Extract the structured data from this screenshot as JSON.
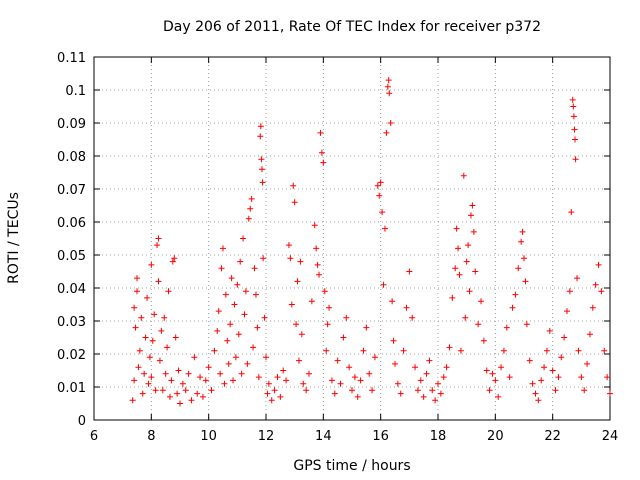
{
  "chart_data": {
    "type": "scatter",
    "title": "Day 206 of 2011, Rate Of TEC Index for receiver p372",
    "xlabel": "GPS time / hours",
    "ylabel": "ROTI / TECUs",
    "xlim": [
      6,
      24
    ],
    "ylim": [
      0,
      0.11
    ],
    "xticks": [
      6,
      8,
      10,
      12,
      14,
      16,
      18,
      20,
      22,
      24
    ],
    "xtick_labels": [
      "6",
      "8",
      "10",
      "12",
      "14",
      "16",
      "18",
      "20",
      "22",
      "24"
    ],
    "yticks": [
      0,
      0.01,
      0.02,
      0.03,
      0.04,
      0.05,
      0.06,
      0.07,
      0.08,
      0.09,
      0.1,
      0.11
    ],
    "ytick_labels": [
      "0",
      "0.01",
      "0.02",
      "0.03",
      "0.04",
      "0.05",
      "0.06",
      "0.07",
      "0.08",
      "0.09",
      "0.1",
      "0.11"
    ],
    "grid": true,
    "marker": "+",
    "color": "#ff0000",
    "series": [
      {
        "points": [
          [
            7.35,
            0.006
          ],
          [
            7.4,
            0.012
          ],
          [
            7.4,
            0.034
          ],
          [
            7.45,
            0.028
          ],
          [
            7.5,
            0.039
          ],
          [
            7.5,
            0.043
          ],
          [
            7.55,
            0.016
          ],
          [
            7.6,
            0.021
          ],
          [
            7.65,
            0.031
          ],
          [
            7.7,
            0.008
          ],
          [
            7.75,
            0.014
          ],
          [
            7.8,
            0.025
          ],
          [
            7.85,
            0.037
          ],
          [
            7.9,
            0.011
          ],
          [
            7.95,
            0.019
          ],
          [
            8.0,
            0.013
          ],
          [
            8.0,
            0.047
          ],
          [
            8.05,
            0.024
          ],
          [
            8.1,
            0.032
          ],
          [
            8.15,
            0.009
          ],
          [
            8.2,
            0.053
          ],
          [
            8.25,
            0.055
          ],
          [
            8.25,
            0.042
          ],
          [
            8.3,
            0.018
          ],
          [
            8.35,
            0.027
          ],
          [
            8.4,
            0.009
          ],
          [
            8.45,
            0.031
          ],
          [
            8.5,
            0.014
          ],
          [
            8.55,
            0.022
          ],
          [
            8.6,
            0.039
          ],
          [
            8.65,
            0.007
          ],
          [
            8.7,
            0.012
          ],
          [
            8.75,
            0.048
          ],
          [
            8.8,
            0.049
          ],
          [
            8.85,
            0.025
          ],
          [
            8.9,
            0.008
          ],
          [
            8.95,
            0.015
          ],
          [
            9.0,
            0.005
          ],
          [
            9.1,
            0.011
          ],
          [
            9.2,
            0.009
          ],
          [
            9.3,
            0.014
          ],
          [
            9.4,
            0.006
          ],
          [
            9.5,
            0.019
          ],
          [
            9.6,
            0.008
          ],
          [
            9.7,
            0.013
          ],
          [
            9.8,
            0.007
          ],
          [
            9.9,
            0.012
          ],
          [
            10.0,
            0.016
          ],
          [
            10.1,
            0.009
          ],
          [
            10.2,
            0.021
          ],
          [
            10.3,
            0.027
          ],
          [
            10.35,
            0.033
          ],
          [
            10.4,
            0.014
          ],
          [
            10.45,
            0.046
          ],
          [
            10.5,
            0.052
          ],
          [
            10.55,
            0.011
          ],
          [
            10.6,
            0.038
          ],
          [
            10.65,
            0.024
          ],
          [
            10.7,
            0.017
          ],
          [
            10.75,
            0.029
          ],
          [
            10.8,
            0.043
          ],
          [
            10.85,
            0.012
          ],
          [
            10.9,
            0.035
          ],
          [
            10.95,
            0.019
          ],
          [
            11.0,
            0.041
          ],
          [
            11.05,
            0.026
          ],
          [
            11.1,
            0.048
          ],
          [
            11.15,
            0.014
          ],
          [
            11.2,
            0.055
          ],
          [
            11.25,
            0.032
          ],
          [
            11.3,
            0.039
          ],
          [
            11.35,
            0.017
          ],
          [
            11.4,
            0.061
          ],
          [
            11.45,
            0.064
          ],
          [
            11.5,
            0.067
          ],
          [
            11.55,
            0.022
          ],
          [
            11.6,
            0.046
          ],
          [
            11.65,
            0.038
          ],
          [
            11.7,
            0.028
          ],
          [
            11.75,
            0.013
          ],
          [
            11.8,
            0.086
          ],
          [
            11.82,
            0.089
          ],
          [
            11.84,
            0.079
          ],
          [
            11.86,
            0.076
          ],
          [
            11.88,
            0.072
          ],
          [
            11.9,
            0.049
          ],
          [
            11.95,
            0.031
          ],
          [
            12.0,
            0.019
          ],
          [
            12.05,
            0.008
          ],
          [
            12.1,
            0.011
          ],
          [
            12.2,
            0.006
          ],
          [
            12.3,
            0.009
          ],
          [
            12.4,
            0.013
          ],
          [
            12.5,
            0.007
          ],
          [
            12.6,
            0.015
          ],
          [
            12.7,
            0.012
          ],
          [
            12.8,
            0.053
          ],
          [
            12.85,
            0.049
          ],
          [
            12.9,
            0.035
          ],
          [
            12.95,
            0.071
          ],
          [
            13.0,
            0.066
          ],
          [
            13.05,
            0.029
          ],
          [
            13.1,
            0.042
          ],
          [
            13.15,
            0.018
          ],
          [
            13.2,
            0.048
          ],
          [
            13.25,
            0.026
          ],
          [
            13.3,
            0.011
          ],
          [
            13.4,
            0.009
          ],
          [
            13.5,
            0.014
          ],
          [
            13.6,
            0.036
          ],
          [
            13.7,
            0.059
          ],
          [
            13.75,
            0.052
          ],
          [
            13.8,
            0.047
          ],
          [
            13.85,
            0.044
          ],
          [
            13.9,
            0.087
          ],
          [
            13.95,
            0.081
          ],
          [
            14.0,
            0.078
          ],
          [
            14.05,
            0.039
          ],
          [
            14.1,
            0.021
          ],
          [
            14.15,
            0.029
          ],
          [
            14.2,
            0.034
          ],
          [
            14.3,
            0.012
          ],
          [
            14.4,
            0.008
          ],
          [
            14.5,
            0.018
          ],
          [
            14.6,
            0.011
          ],
          [
            14.7,
            0.025
          ],
          [
            14.8,
            0.031
          ],
          [
            14.9,
            0.016
          ],
          [
            15.0,
            0.009
          ],
          [
            15.1,
            0.013
          ],
          [
            15.2,
            0.007
          ],
          [
            15.3,
            0.012
          ],
          [
            15.4,
            0.021
          ],
          [
            15.5,
            0.028
          ],
          [
            15.6,
            0.014
          ],
          [
            15.7,
            0.009
          ],
          [
            15.8,
            0.019
          ],
          [
            15.9,
            0.071
          ],
          [
            15.95,
            0.068
          ],
          [
            16.0,
            0.072
          ],
          [
            16.05,
            0.063
          ],
          [
            16.1,
            0.041
          ],
          [
            16.15,
            0.058
          ],
          [
            16.2,
            0.087
          ],
          [
            16.25,
            0.101
          ],
          [
            16.28,
            0.103
          ],
          [
            16.3,
            0.099
          ],
          [
            16.35,
            0.09
          ],
          [
            16.4,
            0.036
          ],
          [
            16.45,
            0.024
          ],
          [
            16.5,
            0.017
          ],
          [
            16.6,
            0.011
          ],
          [
            16.7,
            0.008
          ],
          [
            16.8,
            0.021
          ],
          [
            16.9,
            0.034
          ],
          [
            17.0,
            0.045
          ],
          [
            17.1,
            0.031
          ],
          [
            17.2,
            0.016
          ],
          [
            17.3,
            0.009
          ],
          [
            17.4,
            0.012
          ],
          [
            17.5,
            0.007
          ],
          [
            17.6,
            0.014
          ],
          [
            17.7,
            0.018
          ],
          [
            17.8,
            0.009
          ],
          [
            17.9,
            0.006
          ],
          [
            18.0,
            0.011
          ],
          [
            18.1,
            0.008
          ],
          [
            18.2,
            0.013
          ],
          [
            18.3,
            0.016
          ],
          [
            18.4,
            0.022
          ],
          [
            18.5,
            0.037
          ],
          [
            18.6,
            0.046
          ],
          [
            18.65,
            0.058
          ],
          [
            18.7,
            0.052
          ],
          [
            18.75,
            0.044
          ],
          [
            18.8,
            0.021
          ],
          [
            18.9,
            0.074
          ],
          [
            18.95,
            0.031
          ],
          [
            19.0,
            0.048
          ],
          [
            19.05,
            0.053
          ],
          [
            19.1,
            0.039
          ],
          [
            19.15,
            0.062
          ],
          [
            19.2,
            0.065
          ],
          [
            19.25,
            0.057
          ],
          [
            19.3,
            0.045
          ],
          [
            19.4,
            0.029
          ],
          [
            19.5,
            0.036
          ],
          [
            19.6,
            0.024
          ],
          [
            19.7,
            0.015
          ],
          [
            19.8,
            0.009
          ],
          [
            19.9,
            0.014
          ],
          [
            20.0,
            0.012
          ],
          [
            20.1,
            0.007
          ],
          [
            20.2,
            0.016
          ],
          [
            20.3,
            0.021
          ],
          [
            20.4,
            0.028
          ],
          [
            20.5,
            0.013
          ],
          [
            20.6,
            0.034
          ],
          [
            20.7,
            0.038
          ],
          [
            20.8,
            0.046
          ],
          [
            20.9,
            0.054
          ],
          [
            20.95,
            0.057
          ],
          [
            21.0,
            0.049
          ],
          [
            21.05,
            0.042
          ],
          [
            21.1,
            0.029
          ],
          [
            21.2,
            0.018
          ],
          [
            21.3,
            0.011
          ],
          [
            21.4,
            0.008
          ],
          [
            21.5,
            0.006
          ],
          [
            21.6,
            0.012
          ],
          [
            21.7,
            0.016
          ],
          [
            21.8,
            0.021
          ],
          [
            21.9,
            0.027
          ],
          [
            22.0,
            0.015
          ],
          [
            22.1,
            0.009
          ],
          [
            22.2,
            0.013
          ],
          [
            22.3,
            0.019
          ],
          [
            22.4,
            0.025
          ],
          [
            22.5,
            0.033
          ],
          [
            22.6,
            0.039
          ],
          [
            22.65,
            0.063
          ],
          [
            22.7,
            0.097
          ],
          [
            22.72,
            0.095
          ],
          [
            22.74,
            0.092
          ],
          [
            22.76,
            0.088
          ],
          [
            22.78,
            0.085
          ],
          [
            22.8,
            0.079
          ],
          [
            22.85,
            0.043
          ],
          [
            22.9,
            0.021
          ],
          [
            23.0,
            0.013
          ],
          [
            23.1,
            0.009
          ],
          [
            23.2,
            0.017
          ],
          [
            23.3,
            0.026
          ],
          [
            23.4,
            0.034
          ],
          [
            23.5,
            0.041
          ],
          [
            23.6,
            0.047
          ],
          [
            23.7,
            0.039
          ],
          [
            23.8,
            0.021
          ],
          [
            23.9,
            0.013
          ],
          [
            24.0,
            0.008
          ]
        ]
      }
    ]
  }
}
